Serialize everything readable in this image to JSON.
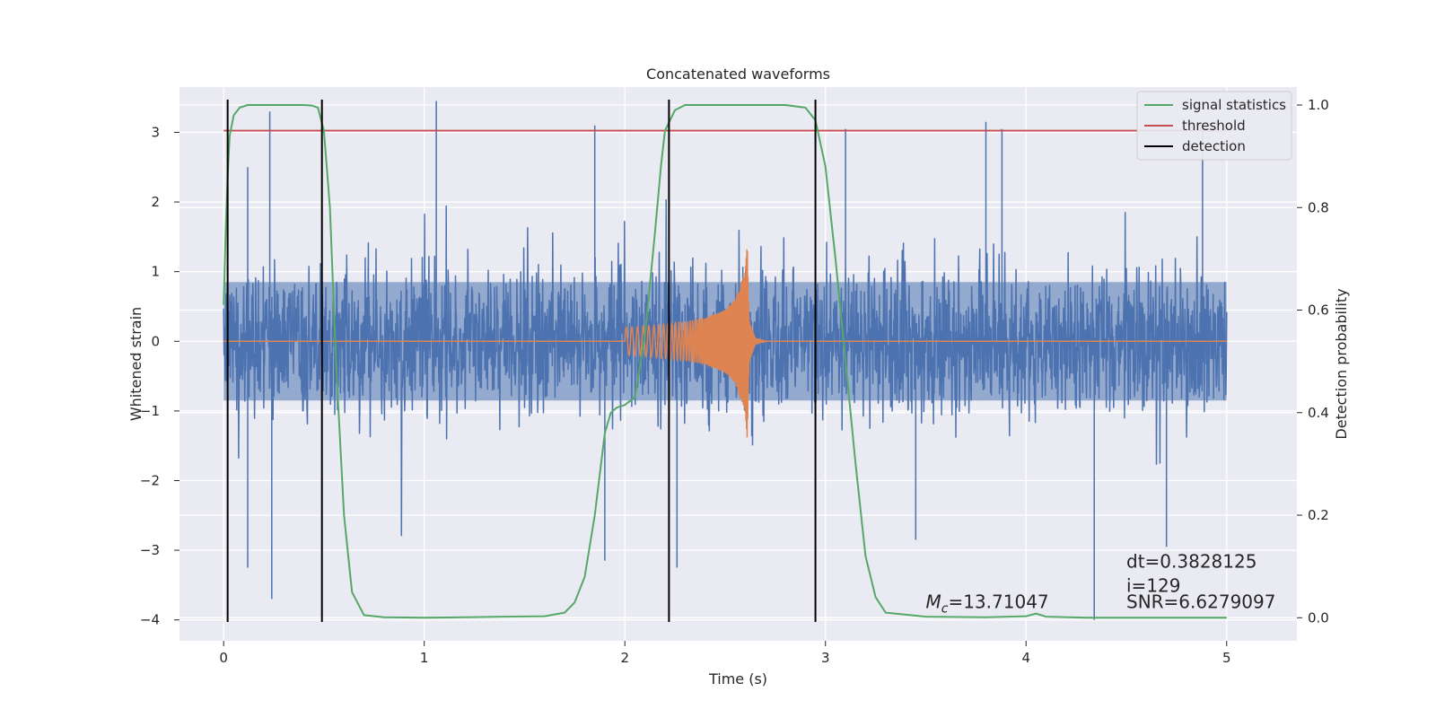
{
  "chart_data": {
    "type": "line",
    "title": "Concatenated waveforms",
    "xlabel": "Time (s)",
    "ylabel": "Whitened strain",
    "y2label": "Detection probability",
    "xlim": [
      -0.22,
      5.35
    ],
    "ylim": [
      -4.3,
      3.65
    ],
    "y2lim": [
      -0.045,
      1.035
    ],
    "xticks": [
      0,
      1,
      2,
      3,
      4,
      5
    ],
    "yticks": [
      -4,
      -3,
      -2,
      -1,
      0,
      1,
      2,
      3
    ],
    "y2ticks": [
      0.0,
      0.2,
      0.4,
      0.6,
      0.8,
      1.0
    ],
    "y2ticklabels": [
      "0.0",
      "0.2",
      "0.4",
      "0.6",
      "0.8",
      "1.0"
    ],
    "grid": true,
    "legend_position": "top-right",
    "colors": {
      "noise": "#4c72b0",
      "signal": "#dd8452",
      "statistics": "#55a868",
      "threshold": "#c44e52",
      "detection": "#000000",
      "background": "#eaeaf2",
      "grid": "#ffffff"
    },
    "series": [
      {
        "name": "",
        "role": "noise",
        "axis": "left",
        "x_range": [
          0,
          5
        ],
        "typical_envelope": [
          -1.0,
          1.0
        ],
        "peaks": [
          {
            "x": 0.23,
            "y": 3.3
          },
          {
            "x": 0.12,
            "y": 2.5
          },
          {
            "x": 1.06,
            "y": 3.45
          },
          {
            "x": 1.85,
            "y": 3.1
          },
          {
            "x": 3.1,
            "y": 3.05
          },
          {
            "x": 3.8,
            "y": 3.15
          },
          {
            "x": 3.88,
            "y": 3.05
          },
          {
            "x": 4.88,
            "y": 3.05
          },
          {
            "x": 0.24,
            "y": -3.7
          },
          {
            "x": 0.12,
            "y": -3.25
          },
          {
            "x": 4.34,
            "y": -4.0
          },
          {
            "x": 1.9,
            "y": -3.15
          },
          {
            "x": 2.26,
            "y": -3.25
          },
          {
            "x": 3.45,
            "y": -2.85
          },
          {
            "x": 4.7,
            "y": -2.95
          }
        ]
      },
      {
        "name": "",
        "role": "signal",
        "axis": "left",
        "x": [
          2.0,
          2.1,
          2.2,
          2.3,
          2.4,
          2.5,
          2.55,
          2.58,
          2.6,
          2.61,
          2.62,
          2.65,
          2.7
        ],
        "amplitude": [
          0.2,
          0.22,
          0.25,
          0.28,
          0.33,
          0.45,
          0.6,
          0.85,
          1.0,
          1.4,
          0.3,
          0.05,
          0.0
        ]
      },
      {
        "name": "signal statistics",
        "role": "statistics",
        "axis": "right",
        "x": [
          0,
          0.01,
          0.02,
          0.03,
          0.05,
          0.08,
          0.12,
          0.2,
          0.3,
          0.4,
          0.44,
          0.47,
          0.5,
          0.53,
          0.56,
          0.6,
          0.64,
          0.7,
          0.8,
          1.0,
          1.2,
          1.4,
          1.6,
          1.7,
          1.75,
          1.8,
          1.85,
          1.9,
          1.93,
          1.96,
          2.0,
          2.05,
          2.1,
          2.15,
          2.18,
          2.2,
          2.25,
          2.3,
          2.5,
          2.8,
          2.9,
          2.95,
          3.0,
          3.05,
          3.1,
          3.15,
          3.2,
          3.25,
          3.3,
          3.5,
          3.8,
          4.0,
          4.05,
          4.1,
          4.3,
          4.6,
          5.0
        ],
        "y": [
          0.61,
          0.75,
          0.86,
          0.94,
          0.98,
          0.995,
          1.0,
          1.0,
          1.0,
          1.0,
          0.999,
          0.995,
          0.95,
          0.8,
          0.5,
          0.2,
          0.05,
          0.005,
          0.001,
          0.0,
          0.001,
          0.002,
          0.003,
          0.01,
          0.03,
          0.08,
          0.2,
          0.36,
          0.4,
          0.41,
          0.415,
          0.43,
          0.55,
          0.75,
          0.88,
          0.95,
          0.99,
          1.0,
          1.0,
          1.0,
          0.995,
          0.97,
          0.88,
          0.7,
          0.5,
          0.3,
          0.12,
          0.04,
          0.01,
          0.002,
          0.001,
          0.003,
          0.008,
          0.002,
          0.0,
          0.0,
          0.0
        ]
      },
      {
        "name": "threshold",
        "role": "threshold",
        "axis": "right",
        "x": [
          0,
          5
        ],
        "y": [
          0.95,
          0.95
        ]
      },
      {
        "name": "detection",
        "role": "detection",
        "axis": "left",
        "vlines": [
          0.02,
          0.49,
          2.22,
          2.95
        ],
        "ymin": -4.03,
        "ymax": 3.47
      }
    ],
    "annotations": [
      {
        "id": "dt",
        "text": "dt=0.3828125",
        "x": 4.5,
        "y": -3.25
      },
      {
        "id": "i",
        "text": " i=129",
        "x": 4.5,
        "y": -3.6
      },
      {
        "id": "snr",
        "text": "SNR=6.6279097",
        "x": 4.5,
        "y": -3.83
      },
      {
        "id": "mc",
        "prefix": "M",
        "subscript": "c",
        "text": "=13.71047",
        "x": 3.5,
        "y": -3.83
      }
    ]
  }
}
